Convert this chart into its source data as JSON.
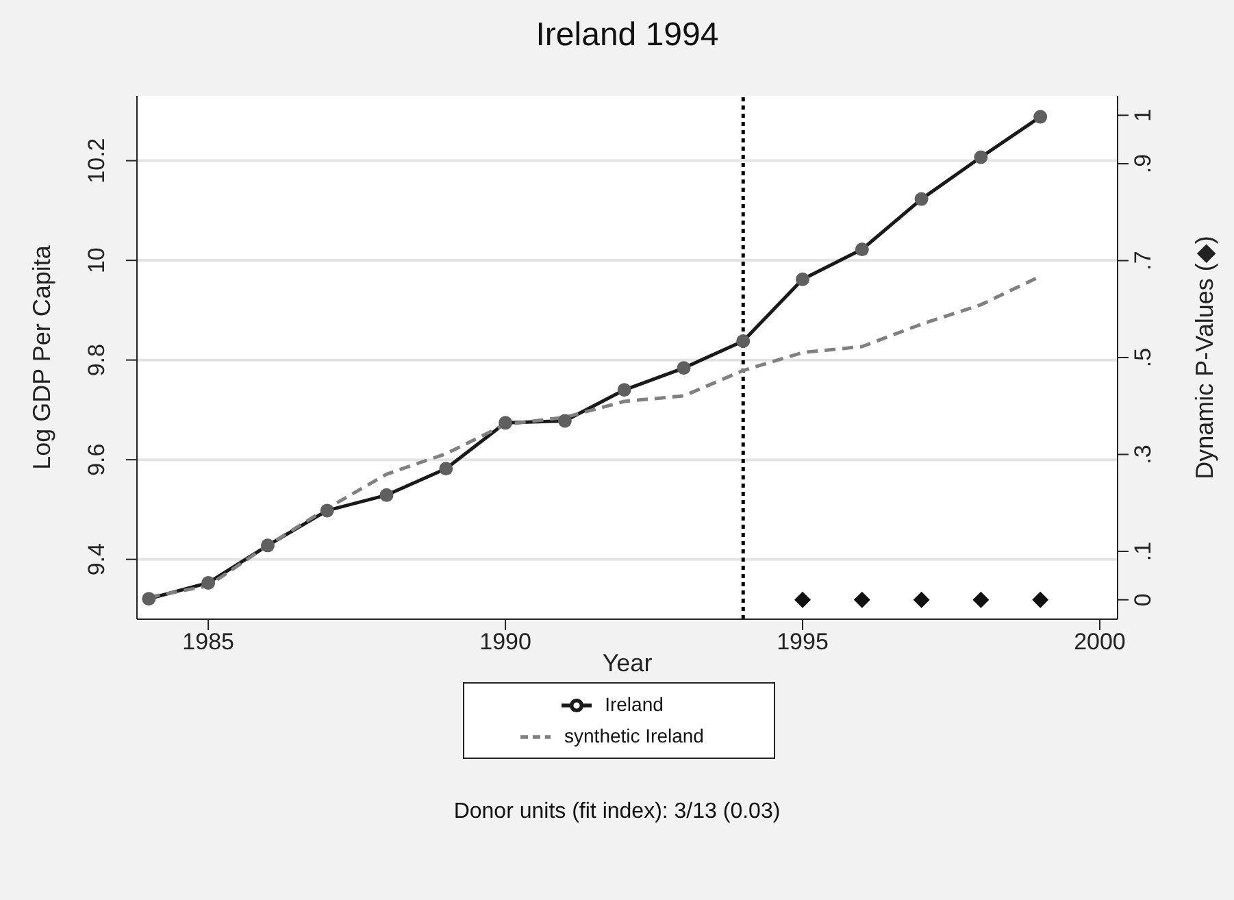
{
  "chart_data": {
    "type": "line",
    "title": "Ireland 1994",
    "xlabel": "Year",
    "ylabel": "Log GDP Per Capita",
    "y2label": "Dynamic P-Values (◆)",
    "x": [
      1984,
      1985,
      1986,
      1987,
      1988,
      1989,
      1990,
      1991,
      1992,
      1993,
      1994,
      1995,
      1996,
      1997,
      1998,
      1999
    ],
    "series": [
      {
        "name": "Ireland",
        "color": "#1a1a1a",
        "marker": "circle",
        "line_style": "solid",
        "values": [
          9.321,
          9.353,
          9.428,
          9.498,
          9.529,
          9.582,
          9.674,
          9.678,
          9.74,
          9.784,
          9.838,
          9.962,
          10.022,
          10.123,
          10.207,
          10.288
        ]
      },
      {
        "name": "synthetic Ireland",
        "color": "#808080",
        "marker": "none",
        "line_style": "dashed",
        "values": [
          9.324,
          9.347,
          9.428,
          9.502,
          9.571,
          9.612,
          9.671,
          9.685,
          9.717,
          9.728,
          9.779,
          9.815,
          9.827,
          9.872,
          9.911,
          9.968
        ]
      },
      {
        "type": "scatter",
        "axis": "y2",
        "color": "#111111",
        "marker": "diamond",
        "x": [
          1995,
          1996,
          1997,
          1998,
          1999
        ],
        "values": [
          0,
          0,
          0,
          0,
          0
        ]
      }
    ],
    "xlim": [
      1983.8,
      2000.3
    ],
    "xticks": [
      1985,
      1990,
      1995,
      2000
    ],
    "ylim": [
      9.28,
      10.33
    ],
    "yticks": [
      9.4,
      9.6,
      9.8,
      10,
      10.2
    ],
    "y2lim": [
      -0.04,
      1.04
    ],
    "y2ticks": [
      0,
      {
        "value": 0.1,
        "label": ".1"
      },
      {
        "value": 0.3,
        "label": ".3"
      },
      {
        "value": 0.5,
        "label": ".5"
      },
      {
        "value": 0.7,
        "label": ".7"
      },
      {
        "value": 0.9,
        "label": ".9"
      },
      1
    ],
    "ref_lines": [
      {
        "axis": "x",
        "value": 1994,
        "color": "#000000",
        "line_style": "dotted"
      }
    ],
    "grid": "y",
    "legend": "bottom",
    "annotations": [
      "Donor units (fit index): 3/13 (0.03)"
    ]
  }
}
